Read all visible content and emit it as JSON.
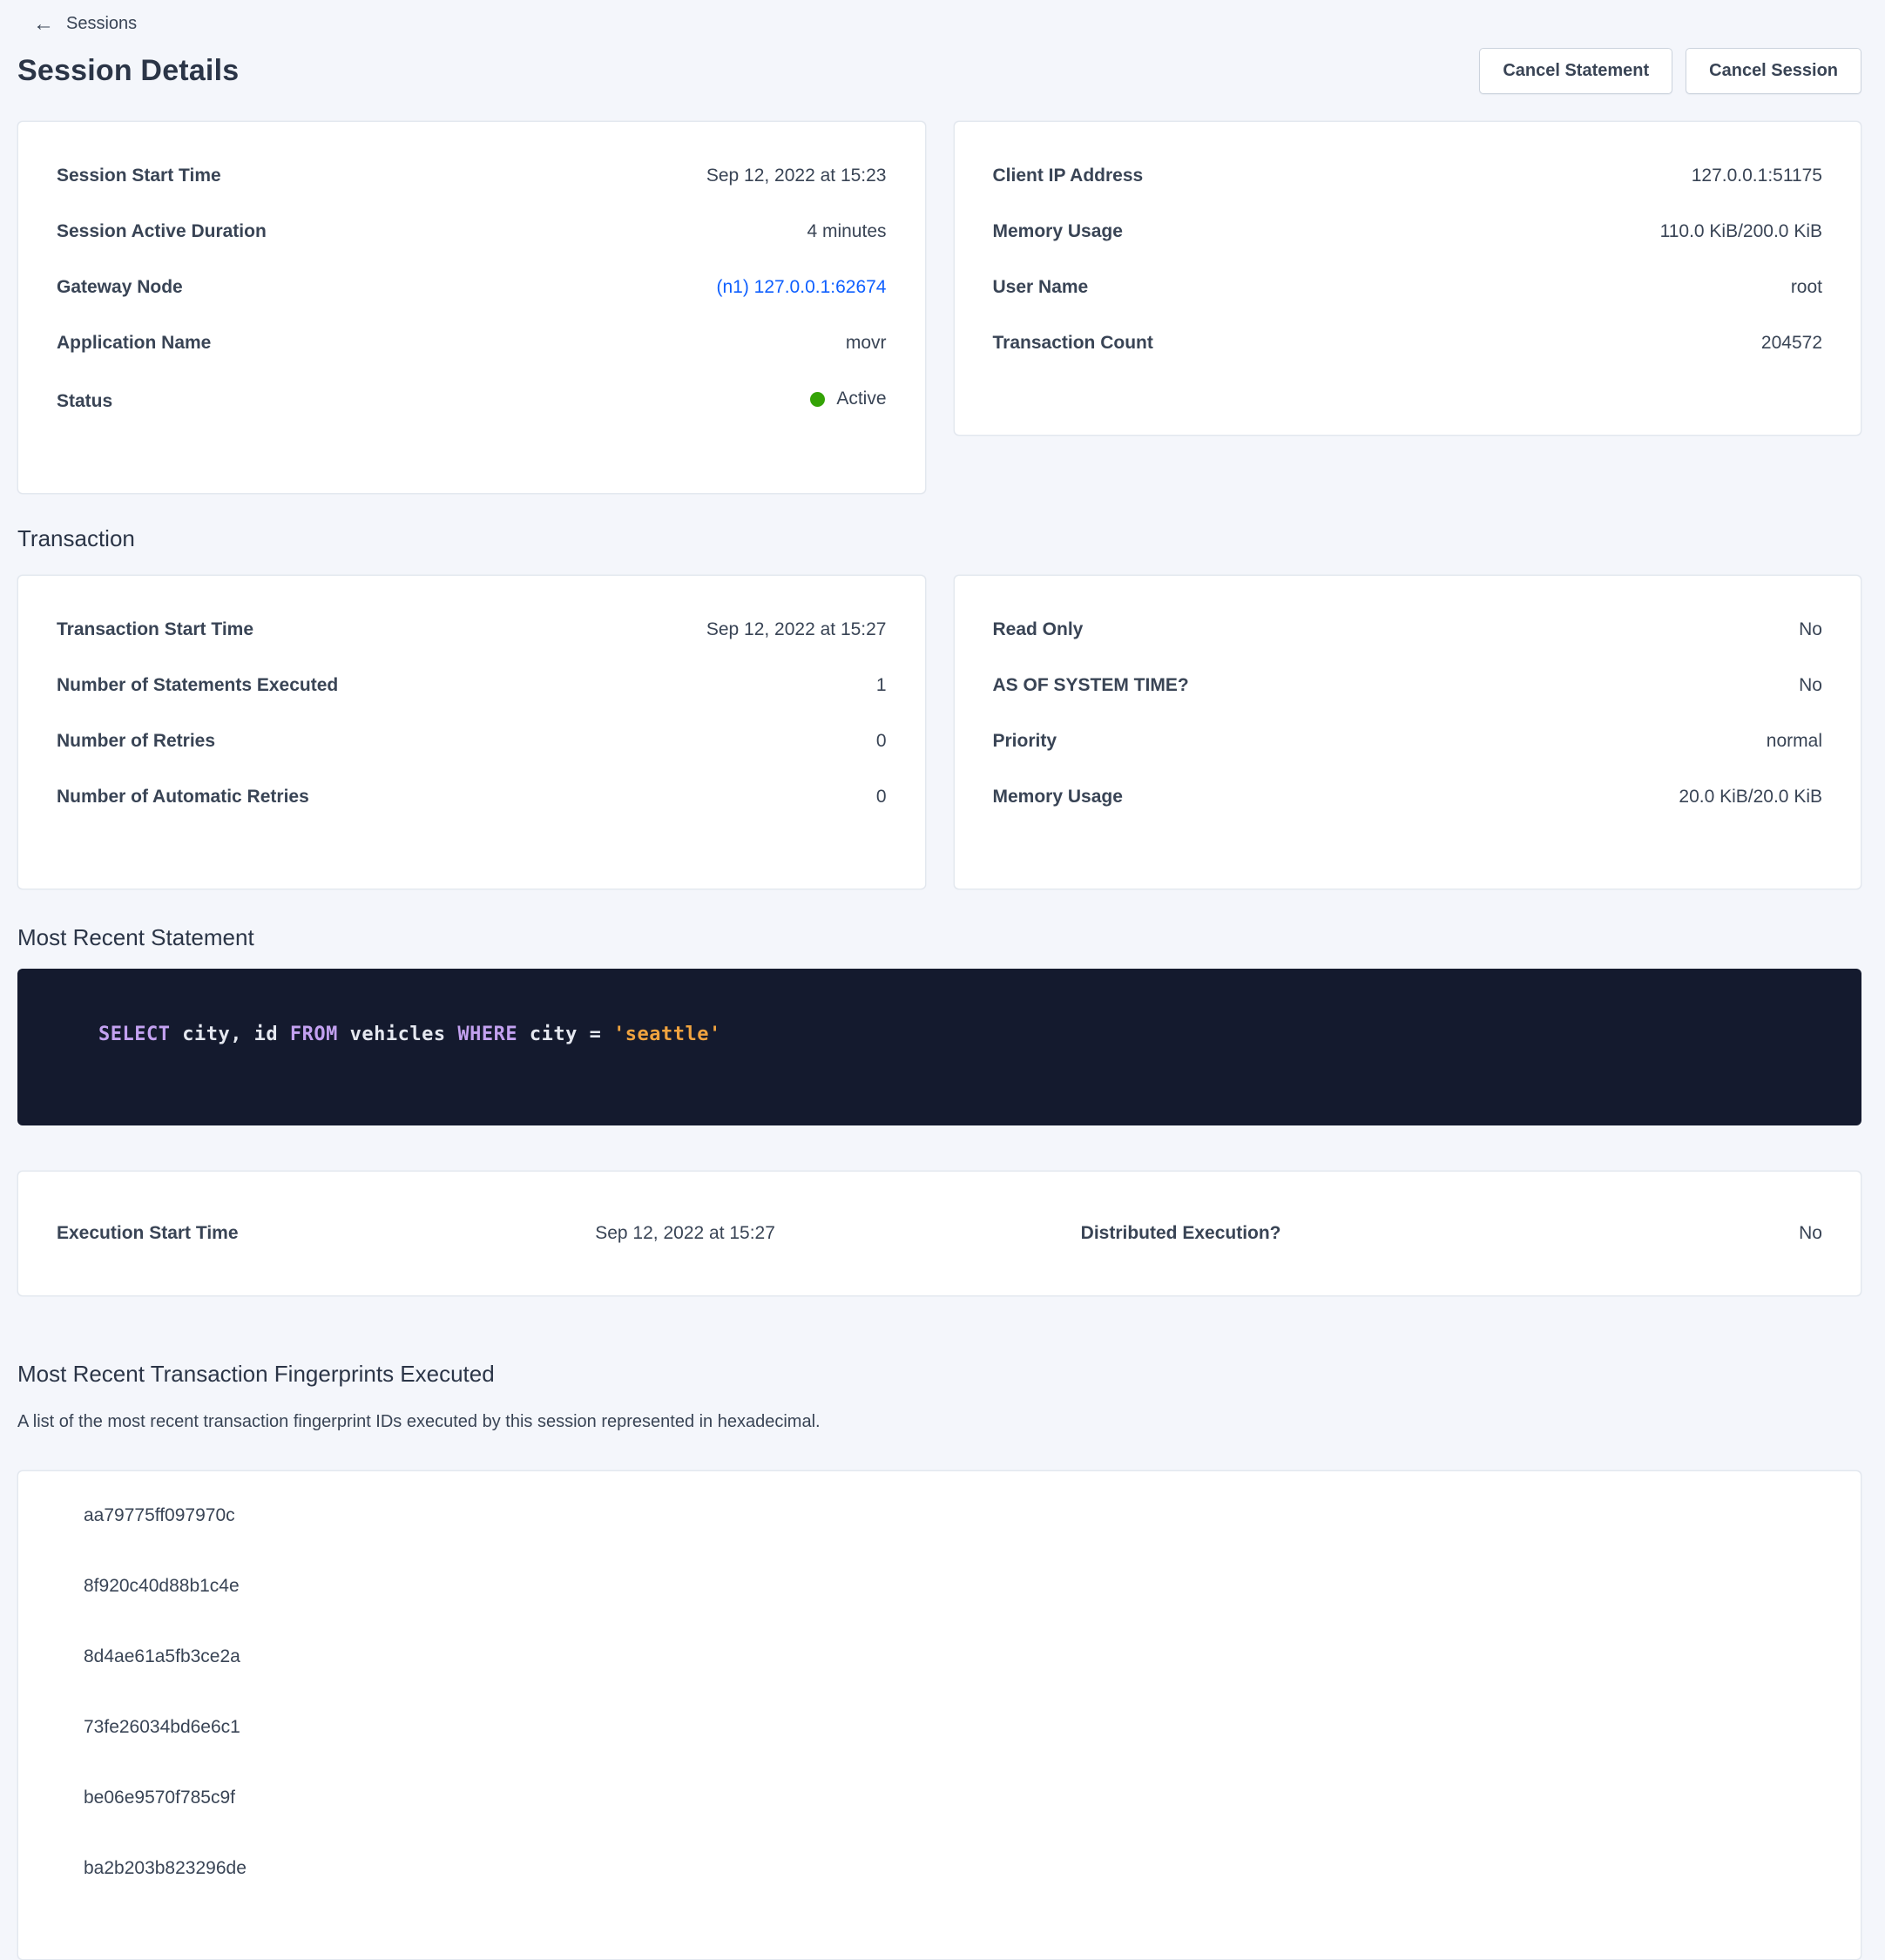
{
  "header": {
    "back_label": "Sessions",
    "title": "Session Details",
    "cancel_statement_label": "Cancel Statement",
    "cancel_session_label": "Cancel Session"
  },
  "session_card": {
    "rows": [
      {
        "label": "Session Start Time",
        "value": "Sep 12, 2022 at 15:23"
      },
      {
        "label": "Session Active Duration",
        "value": "4 minutes"
      },
      {
        "label": "Gateway Node",
        "value": "(n1) 127.0.0.1:62674",
        "type": "link"
      },
      {
        "label": "Application Name",
        "value": "movr"
      },
      {
        "label": "Status",
        "value": "Active",
        "type": "status"
      }
    ]
  },
  "client_card": {
    "rows": [
      {
        "label": "Client IP Address",
        "value": "127.0.0.1:51175"
      },
      {
        "label": "Memory Usage",
        "value": "110.0 KiB/200.0 KiB"
      },
      {
        "label": "User Name",
        "value": "root"
      },
      {
        "label": "Transaction Count",
        "value": "204572"
      }
    ]
  },
  "transaction": {
    "section_title": "Transaction",
    "details_card": {
      "rows": [
        {
          "label": "Transaction Start Time",
          "value": "Sep 12, 2022 at 15:27"
        },
        {
          "label": "Number of Statements Executed",
          "value": "1"
        },
        {
          "label": "Number of Retries",
          "value": "0"
        },
        {
          "label": "Number of Automatic Retries",
          "value": "0"
        }
      ]
    },
    "properties_card": {
      "rows": [
        {
          "label": "Read Only",
          "value": "No"
        },
        {
          "label": "AS OF SYSTEM TIME?",
          "value": "No"
        },
        {
          "label": "Priority",
          "value": "normal"
        },
        {
          "label": "Memory Usage",
          "value": "20.0 KiB/20.0 KiB"
        }
      ]
    }
  },
  "statement": {
    "section_title": "Most Recent Statement",
    "sql_tokens": [
      {
        "t": "SELECT",
        "c": "keyword"
      },
      {
        "t": " city, id ",
        "c": "plain"
      },
      {
        "t": "FROM",
        "c": "keyword"
      },
      {
        "t": " vehicles ",
        "c": "plain"
      },
      {
        "t": "WHERE",
        "c": "keyword"
      },
      {
        "t": " city = ",
        "c": "plain"
      },
      {
        "t": "'seattle'",
        "c": "string"
      }
    ],
    "execution_card": {
      "start_label": "Execution Start Time",
      "start_value": "Sep 12, 2022 at 15:27",
      "distributed_label": "Distributed Execution?",
      "distributed_value": "No"
    }
  },
  "fingerprints": {
    "section_title": "Most Recent Transaction Fingerprints Executed",
    "description": "A list of the most recent transaction fingerprint IDs executed by this session represented in hexadecimal.",
    "ids": [
      "aa79775ff097970c",
      "8f920c40d88b1c4e",
      "8d4ae61a5fb3ce2a",
      "73fe26034bd6e6c1",
      "be06e9570f785c9f",
      "ba2b203b823296de"
    ]
  },
  "colors": {
    "page_background": "#f4f6fb",
    "card_background": "#ffffff",
    "text_primary": "#394455",
    "link_blue": "#0e5fff",
    "status_active_green": "#34a305",
    "code_background": "#141a2e",
    "code_keyword": "#c3a1f0",
    "code_string": "#f0a33f",
    "code_text": "#e5e8f0"
  }
}
